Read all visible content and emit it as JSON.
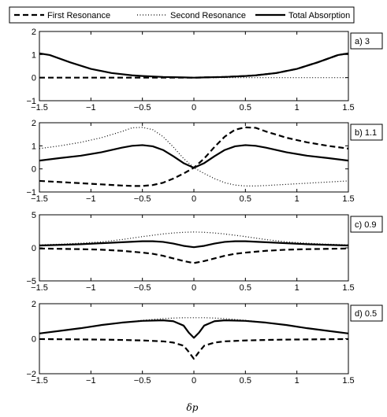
{
  "legend": {
    "position": "top",
    "items": [
      {
        "label": "First Resonance",
        "style": "dashed"
      },
      {
        "label": "Second Resonance",
        "style": "dotted"
      },
      {
        "label": "Total Absorption",
        "style": "solid"
      }
    ]
  },
  "xlabel": "δp",
  "chart_data": [
    {
      "type": "line",
      "tag": "a) 3",
      "xlim": [
        -1.5,
        1.5
      ],
      "ylim": [
        -1,
        2
      ],
      "xticks": [
        "-1.5",
        "-1",
        "-0.5",
        "0",
        "0.5",
        "1",
        "1.5"
      ],
      "yticks": [
        "-1",
        "0",
        "1",
        "2"
      ],
      "x": [
        -1.5,
        -1.4,
        -1.2,
        -1.0,
        -0.8,
        -0.6,
        -0.5,
        -0.4,
        -0.3,
        -0.2,
        -0.1,
        0.0,
        0.1,
        0.2,
        0.3,
        0.4,
        0.5,
        0.6,
        0.8,
        1.0,
        1.2,
        1.4,
        1.5
      ],
      "series": [
        {
          "name": "First Resonance",
          "values": [
            0,
            0,
            0,
            0,
            0,
            0,
            0,
            0,
            0,
            0,
            0,
            0,
            0.01,
            0.02,
            0.03,
            0.05,
            0.07,
            0.1,
            0.2,
            0.38,
            0.66,
            0.98,
            1.05
          ]
        },
        {
          "name": "Second Resonance",
          "values": [
            1.05,
            0.98,
            0.66,
            0.38,
            0.2,
            0.1,
            0.07,
            0.05,
            0.03,
            0.02,
            0.01,
            0,
            0,
            0,
            0,
            0,
            0,
            0,
            0,
            0,
            0,
            0,
            0
          ]
        },
        {
          "name": "Total Absorption",
          "values": [
            1.05,
            0.98,
            0.66,
            0.38,
            0.2,
            0.1,
            0.07,
            0.05,
            0.03,
            0.02,
            0.01,
            0,
            0.01,
            0.02,
            0.03,
            0.05,
            0.07,
            0.1,
            0.2,
            0.38,
            0.66,
            0.98,
            1.05
          ]
        }
      ]
    },
    {
      "type": "line",
      "tag": "b) 1.1",
      "xlim": [
        -1.5,
        1.5
      ],
      "ylim": [
        -1,
        2
      ],
      "xticks": [
        "-1.5",
        "-1",
        "-0.5",
        "0",
        "0.5",
        "1",
        "1.5"
      ],
      "yticks": [
        "-1",
        "0",
        "1",
        "2"
      ],
      "x": [
        -1.5,
        -1.3,
        -1.1,
        -0.9,
        -0.7,
        -0.6,
        -0.5,
        -0.4,
        -0.3,
        -0.2,
        -0.1,
        0.0,
        0.1,
        0.2,
        0.3,
        0.4,
        0.5,
        0.6,
        0.7,
        0.9,
        1.1,
        1.3,
        1.5
      ],
      "series": [
        {
          "name": "First Resonance",
          "values": [
            -0.52,
            -0.57,
            -0.62,
            -0.67,
            -0.72,
            -0.74,
            -0.74,
            -0.7,
            -0.6,
            -0.42,
            -0.2,
            0.05,
            0.45,
            0.95,
            1.4,
            1.7,
            1.8,
            1.78,
            1.62,
            1.35,
            1.15,
            1.0,
            0.88
          ]
        },
        {
          "name": "Second Resonance",
          "values": [
            0.88,
            1.0,
            1.15,
            1.35,
            1.62,
            1.78,
            1.8,
            1.7,
            1.4,
            0.95,
            0.45,
            0.05,
            -0.2,
            -0.42,
            -0.6,
            -0.7,
            -0.74,
            -0.74,
            -0.72,
            -0.67,
            -0.62,
            -0.57,
            -0.52
          ]
        },
        {
          "name": "Total Absorption",
          "values": [
            0.36,
            0.47,
            0.57,
            0.72,
            0.92,
            1.0,
            1.03,
            0.98,
            0.82,
            0.55,
            0.25,
            0.05,
            0.25,
            0.55,
            0.82,
            0.98,
            1.03,
            1.0,
            0.92,
            0.72,
            0.57,
            0.47,
            0.36
          ]
        }
      ]
    },
    {
      "type": "line",
      "tag": "c) 0.9",
      "xlim": [
        -1.5,
        1.5
      ],
      "ylim": [
        -5,
        5
      ],
      "xticks": [
        "-1.5",
        "-1",
        "-0.5",
        "0",
        "0.5",
        "1",
        "1.5"
      ],
      "yticks": [
        "-5",
        "0",
        "5"
      ],
      "x": [
        -1.5,
        -1.3,
        -1.1,
        -0.9,
        -0.7,
        -0.5,
        -0.4,
        -0.3,
        -0.2,
        -0.1,
        0.0,
        0.1,
        0.2,
        0.3,
        0.4,
        0.5,
        0.7,
        0.9,
        1.1,
        1.3,
        1.5
      ],
      "series": [
        {
          "name": "First Resonance",
          "values": [
            -0.1,
            -0.15,
            -0.2,
            -0.28,
            -0.45,
            -0.72,
            -0.9,
            -1.2,
            -1.6,
            -2.0,
            -2.3,
            -2.0,
            -1.6,
            -1.2,
            -0.9,
            -0.72,
            -0.45,
            -0.28,
            -0.2,
            -0.15,
            -0.1
          ]
        },
        {
          "name": "Second Resonance",
          "values": [
            0.45,
            0.55,
            0.7,
            0.9,
            1.25,
            1.7,
            1.9,
            2.1,
            2.25,
            2.35,
            2.4,
            2.35,
            2.25,
            2.1,
            1.9,
            1.7,
            1.25,
            0.9,
            0.7,
            0.55,
            0.45
          ]
        },
        {
          "name": "Total Absorption",
          "values": [
            0.36,
            0.45,
            0.55,
            0.7,
            0.85,
            1.0,
            1.0,
            0.9,
            0.65,
            0.3,
            0.1,
            0.3,
            0.65,
            0.9,
            1.0,
            1.0,
            0.85,
            0.7,
            0.55,
            0.45,
            0.36
          ]
        }
      ]
    },
    {
      "type": "line",
      "tag": "d) 0.5",
      "xlim": [
        -1.5,
        1.5
      ],
      "ylim": [
        -2,
        2
      ],
      "xticks": [
        "-1.5",
        "-1",
        "-0.5",
        "0",
        "0.5",
        "1",
        "1.5"
      ],
      "yticks": [
        "-2",
        "0",
        "2"
      ],
      "x": [
        -1.5,
        -1.3,
        -1.1,
        -0.9,
        -0.7,
        -0.5,
        -0.3,
        -0.2,
        -0.1,
        -0.05,
        0.0,
        0.05,
        0.1,
        0.2,
        0.3,
        0.5,
        0.7,
        0.9,
        1.1,
        1.3,
        1.5
      ],
      "series": [
        {
          "name": "First Resonance",
          "values": [
            -0.02,
            -0.03,
            -0.04,
            -0.05,
            -0.07,
            -0.1,
            -0.15,
            -0.22,
            -0.4,
            -0.75,
            -1.15,
            -0.75,
            -0.4,
            -0.22,
            -0.15,
            -0.1,
            -0.07,
            -0.05,
            -0.04,
            -0.03,
            -0.02
          ]
        },
        {
          "name": "Second Resonance",
          "values": [
            0.3,
            0.45,
            0.6,
            0.78,
            0.92,
            1.05,
            1.15,
            1.18,
            1.2,
            1.2,
            1.2,
            1.2,
            1.2,
            1.18,
            1.15,
            1.05,
            0.92,
            0.78,
            0.6,
            0.45,
            0.3
          ]
        },
        {
          "name": "Total Absorption",
          "values": [
            0.3,
            0.45,
            0.6,
            0.78,
            0.92,
            1.02,
            1.05,
            1.0,
            0.75,
            0.35,
            0.05,
            0.35,
            0.75,
            1.0,
            1.05,
            1.02,
            0.92,
            0.78,
            0.6,
            0.45,
            0.3
          ]
        }
      ]
    }
  ]
}
